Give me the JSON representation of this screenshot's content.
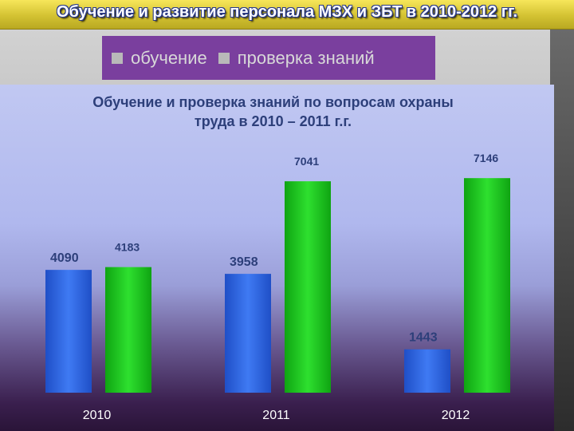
{
  "page": {
    "title": "Обучение и развитие персонала МЗХ и ЗБТ в 2010-2012 гг."
  },
  "legend": {
    "items": [
      {
        "label": "обучение"
      },
      {
        "label": "проверка знаний"
      }
    ]
  },
  "colors": {
    "series1": "#2e63e0",
    "series2": "#18c41a",
    "label": "#2d3f7a",
    "tick": "#ffffff"
  },
  "chart_data": {
    "type": "bar",
    "title_line1": "Обучение и проверка знаний по вопросам охраны",
    "title_line2": "труда в 2010 – 2011 г.г.",
    "categories": [
      "2010",
      "2011",
      "2012"
    ],
    "series": [
      {
        "name": "обучение",
        "values": [
          4090,
          3958,
          1443
        ]
      },
      {
        "name": "проверка знаний",
        "values": [
          4183,
          7041,
          7146
        ]
      }
    ],
    "ylim": [
      0,
      8400
    ],
    "grid": false,
    "legend_position": "top"
  }
}
